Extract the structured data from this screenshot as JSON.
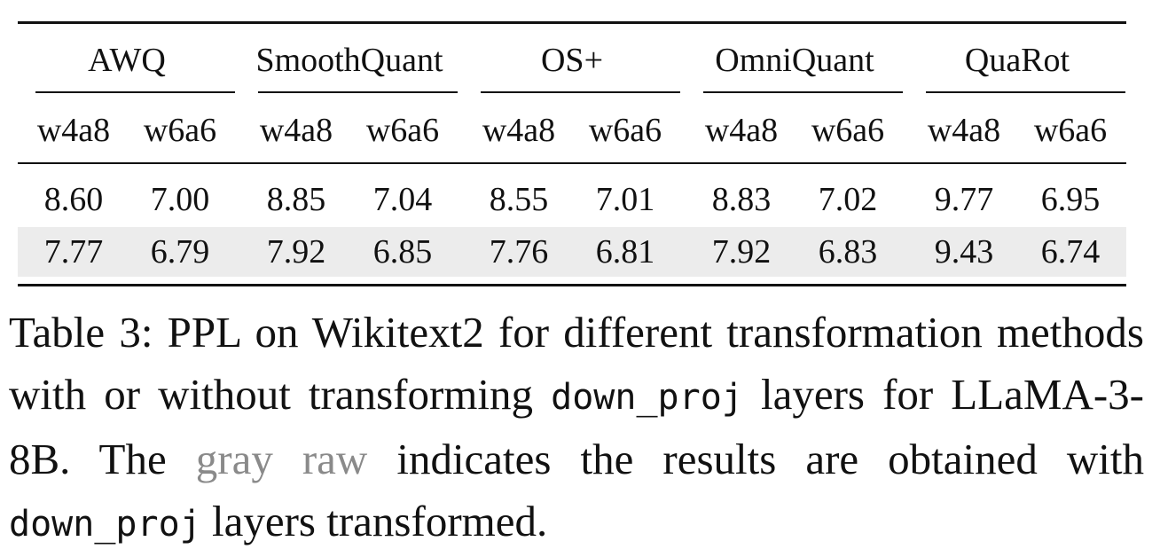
{
  "table": {
    "groups": [
      "AWQ",
      "SmoothQuant",
      "OS+",
      "OmniQuant",
      "QuaRot"
    ],
    "subheaders": [
      "w4a8",
      "w6a6",
      "w4a8",
      "w6a6",
      "w4a8",
      "w6a6",
      "w4a8",
      "w6a6",
      "w4a8",
      "w6a6"
    ],
    "rows": [
      [
        "8.60",
        "7.00",
        "8.85",
        "7.04",
        "8.55",
        "7.01",
        "8.83",
        "7.02",
        "9.77",
        "6.95"
      ],
      [
        "7.77",
        "6.79",
        "7.92",
        "6.85",
        "7.76",
        "6.81",
        "7.92",
        "6.83",
        "9.43",
        "6.74"
      ]
    ]
  },
  "caption": {
    "parts": [
      "Table 3: PPL on Wikitext2 for different transformation methods with or without transforming ",
      "down_proj",
      " layers for LLaMA-3-8B. The ",
      "gray raw",
      " indicates the results are obtained with ",
      "down_proj",
      " layers transformed."
    ]
  }
}
